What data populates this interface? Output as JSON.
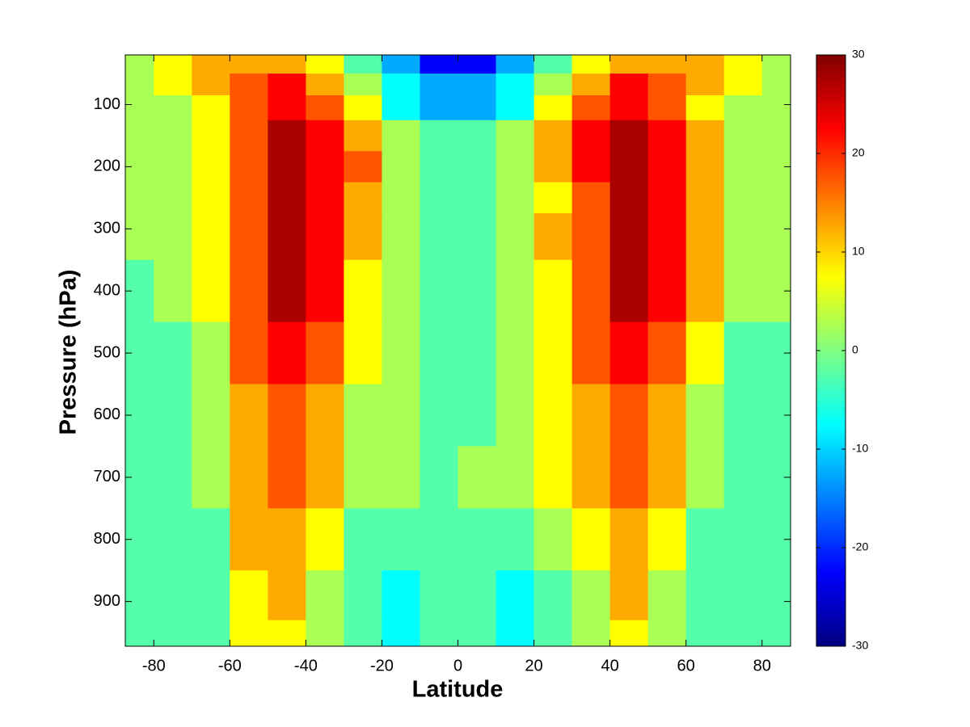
{
  "chart_data": {
    "type": "contourf",
    "xlabel": "Latitude",
    "ylabel": "Pressure (hPa)",
    "x": [
      -85,
      -75,
      -65,
      -55,
      -45,
      -35,
      -25,
      -15,
      -5,
      5,
      15,
      25,
      35,
      45,
      55,
      65,
      75,
      85
    ],
    "y": [
      30,
      70,
      100,
      150,
      200,
      250,
      300,
      400,
      500,
      600,
      700,
      800,
      900,
      960
    ],
    "z": [
      [
        2,
        7,
        12,
        12,
        12,
        7,
        -2,
        -12,
        -22,
        -22,
        -12,
        -2,
        7,
        12,
        12,
        12,
        7,
        2
      ],
      [
        2,
        7,
        12,
        17,
        22,
        12,
        2,
        -7,
        -12,
        -12,
        -7,
        2,
        12,
        22,
        17,
        12,
        7,
        2
      ],
      [
        2,
        2,
        7,
        17,
        22,
        17,
        7,
        -7,
        -12,
        -12,
        -7,
        7,
        17,
        22,
        17,
        7,
        2,
        2
      ],
      [
        2,
        2,
        7,
        17,
        27,
        22,
        12,
        2,
        -2,
        -2,
        2,
        12,
        22,
        27,
        22,
        12,
        2,
        2
      ],
      [
        2,
        2,
        7,
        17,
        32,
        22,
        17,
        2,
        -2,
        -2,
        2,
        12,
        22,
        32,
        22,
        12,
        2,
        2
      ],
      [
        2,
        2,
        7,
        17,
        32,
        22,
        12,
        2,
        -2,
        -2,
        2,
        7,
        17,
        32,
        22,
        12,
        2,
        2
      ],
      [
        2,
        2,
        7,
        17,
        32,
        22,
        12,
        2,
        -2,
        -2,
        2,
        12,
        17,
        32,
        22,
        12,
        2,
        2
      ],
      [
        -2,
        2,
        7,
        17,
        27,
        22,
        7,
        2,
        -2,
        -2,
        2,
        7,
        17,
        27,
        22,
        12,
        2,
        2
      ],
      [
        -2,
        -2,
        2,
        17,
        22,
        17,
        7,
        2,
        -2,
        -2,
        2,
        7,
        17,
        22,
        17,
        7,
        -2,
        -2
      ],
      [
        -2,
        -2,
        2,
        12,
        17,
        12,
        2,
        2,
        -2,
        -2,
        2,
        7,
        12,
        17,
        12,
        2,
        -2,
        -2
      ],
      [
        -2,
        -2,
        2,
        12,
        17,
        12,
        2,
        2,
        -2,
        2,
        2,
        7,
        12,
        17,
        12,
        2,
        -2,
        -2
      ],
      [
        -2,
        -2,
        -2,
        12,
        12,
        7,
        -2,
        -2,
        -2,
        -2,
        -2,
        2,
        7,
        12,
        7,
        -2,
        -2,
        -2
      ],
      [
        -2,
        -2,
        -2,
        7,
        12,
        2,
        -2,
        -7,
        -2,
        -2,
        -7,
        -2,
        2,
        12,
        2,
        -2,
        -2,
        -2
      ],
      [
        -2,
        -2,
        -2,
        7,
        7,
        2,
        -2,
        -7,
        -2,
        -2,
        -7,
        -2,
        2,
        7,
        2,
        -2,
        -2,
        -2
      ]
    ],
    "xlim": [
      -87.5,
      87.5
    ],
    "ylim": [
      972,
      20
    ],
    "y_inverted": true,
    "xticks": [
      -80,
      -60,
      -40,
      -20,
      0,
      20,
      40,
      60,
      80
    ],
    "yticks": [
      100,
      200,
      300,
      400,
      500,
      600,
      700,
      800,
      900
    ],
    "levels": [
      -30,
      -25,
      -20,
      -15,
      -10,
      -5,
      0,
      5,
      10,
      15,
      20,
      25,
      30
    ],
    "colormap": "jet",
    "colorbar": {
      "lim": [
        -30,
        30
      ],
      "ticks": [
        -30,
        -20,
        -10,
        0,
        10,
        20,
        30
      ]
    }
  }
}
